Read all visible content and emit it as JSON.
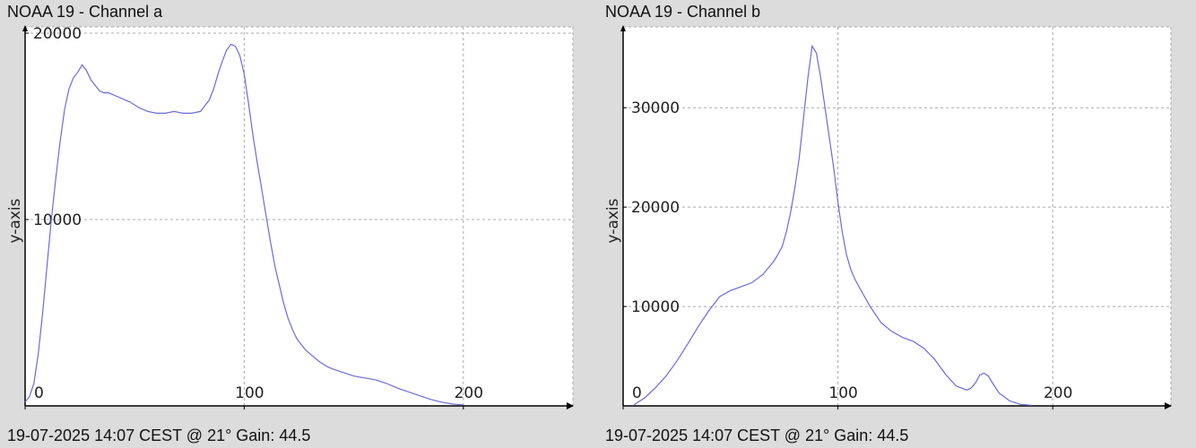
{
  "chart_data": [
    {
      "type": "line",
      "title": "NOAA 19 - Channel a",
      "footer": "19-07-2025 14:07 CEST @ 21° Gain: 44.5",
      "ylabel": "y-axis",
      "xlabel": "",
      "xlim": [
        0,
        250
      ],
      "ylim": [
        0,
        20000
      ],
      "x_ticks": [
        0,
        100,
        200
      ],
      "y_ticks": [
        10000,
        20000
      ],
      "grid": true,
      "line_color": "#6b6bdc",
      "series": [
        {
          "x": [
            0,
            2,
            4,
            6,
            8,
            10,
            12,
            14,
            16,
            18,
            20,
            22,
            24,
            26,
            28,
            30,
            32,
            34,
            36,
            38,
            40,
            44,
            48,
            52,
            56,
            60,
            64,
            68,
            72,
            76,
            80,
            84,
            86,
            88,
            90,
            92,
            94,
            96,
            98,
            100,
            102,
            104,
            106,
            108,
            110,
            112,
            114,
            116,
            118,
            120,
            122,
            124,
            126,
            128,
            130,
            132,
            134,
            136,
            138,
            140,
            145,
            150,
            155,
            160,
            165,
            170,
            175,
            180,
            185,
            190,
            195,
            200
          ],
          "y": [
            200,
            500,
            1200,
            2800,
            5000,
            7500,
            10000,
            12200,
            14200,
            15900,
            17000,
            17600,
            17900,
            18300,
            18000,
            17500,
            17200,
            16900,
            16800,
            16800,
            16700,
            16500,
            16300,
            16000,
            15800,
            15700,
            15700,
            15800,
            15700,
            15700,
            15800,
            16400,
            17000,
            17800,
            18500,
            19100,
            19400,
            19300,
            18800,
            17800,
            16200,
            14500,
            13000,
            11600,
            10200,
            8800,
            7500,
            6500,
            5500,
            4700,
            4100,
            3600,
            3300,
            3000,
            2800,
            2600,
            2400,
            2250,
            2100,
            2000,
            1800,
            1600,
            1500,
            1400,
            1200,
            950,
            750,
            550,
            350,
            200,
            100,
            50
          ]
        }
      ]
    },
    {
      "type": "line",
      "title": "NOAA 19 - Channel b",
      "footer": "19-07-2025 14:07 CEST @ 21° Gain: 44.5",
      "ylabel": "y-axis",
      "xlabel": "",
      "xlim": [
        0,
        255
      ],
      "ylim": [
        0,
        37500
      ],
      "x_ticks": [
        0,
        100,
        200
      ],
      "y_ticks": [
        10000,
        20000,
        30000
      ],
      "grid": true,
      "line_color": "#6b6bdc",
      "series": [
        {
          "x": [
            5,
            10,
            15,
            20,
            25,
            30,
            35,
            40,
            45,
            50,
            55,
            60,
            65,
            70,
            72,
            74,
            76,
            78,
            80,
            82,
            84,
            86,
            88,
            90,
            92,
            94,
            96,
            98,
            100,
            102,
            104,
            106,
            108,
            110,
            115,
            120,
            125,
            130,
            135,
            140,
            145,
            150,
            155,
            160,
            162,
            164,
            166,
            168,
            170,
            172,
            175,
            180,
            185,
            190
          ],
          "y": [
            100,
            800,
            1800,
            3000,
            4500,
            6200,
            8000,
            9600,
            11000,
            11600,
            12000,
            12400,
            13200,
            14500,
            15200,
            16000,
            17500,
            19500,
            22000,
            25000,
            29000,
            33000,
            36200,
            35500,
            33000,
            30000,
            27000,
            24000,
            20500,
            17500,
            15200,
            13700,
            12700,
            11900,
            10000,
            8400,
            7500,
            6900,
            6500,
            5800,
            4700,
            3200,
            2000,
            1600,
            1800,
            2300,
            3100,
            3300,
            3000,
            2300,
            1300,
            500,
            150,
            50
          ]
        }
      ]
    }
  ]
}
